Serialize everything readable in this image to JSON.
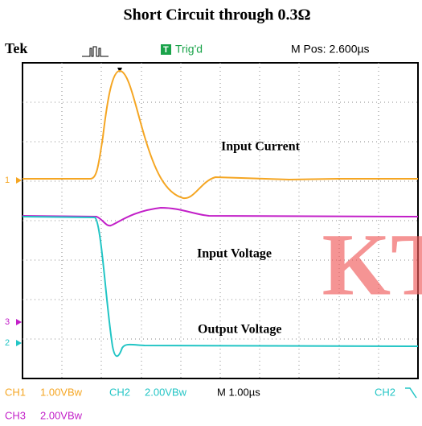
{
  "title": "Short Circuit through 0.3Ω",
  "header": {
    "brand": "Tek",
    "trigger_status": "Trig'd",
    "m_pos": "M Pos: 2.600µs"
  },
  "markers": {
    "ch1": "1",
    "ch3": "3",
    "ch2": "2"
  },
  "annotations": {
    "current": "Input Current",
    "input_voltage": "Input Voltage",
    "output_voltage": "Output Voltage"
  },
  "watermark": "KT",
  "footer": {
    "ch1": "CH1",
    "ch1_scale": "1.00VBw",
    "ch2": "CH2",
    "ch2_scale": "2.00VBw",
    "timebase": "M 1.00µs",
    "trigger_source": "CH2",
    "ch3": "CH3",
    "ch3_scale": "2.00VBw"
  }
}
